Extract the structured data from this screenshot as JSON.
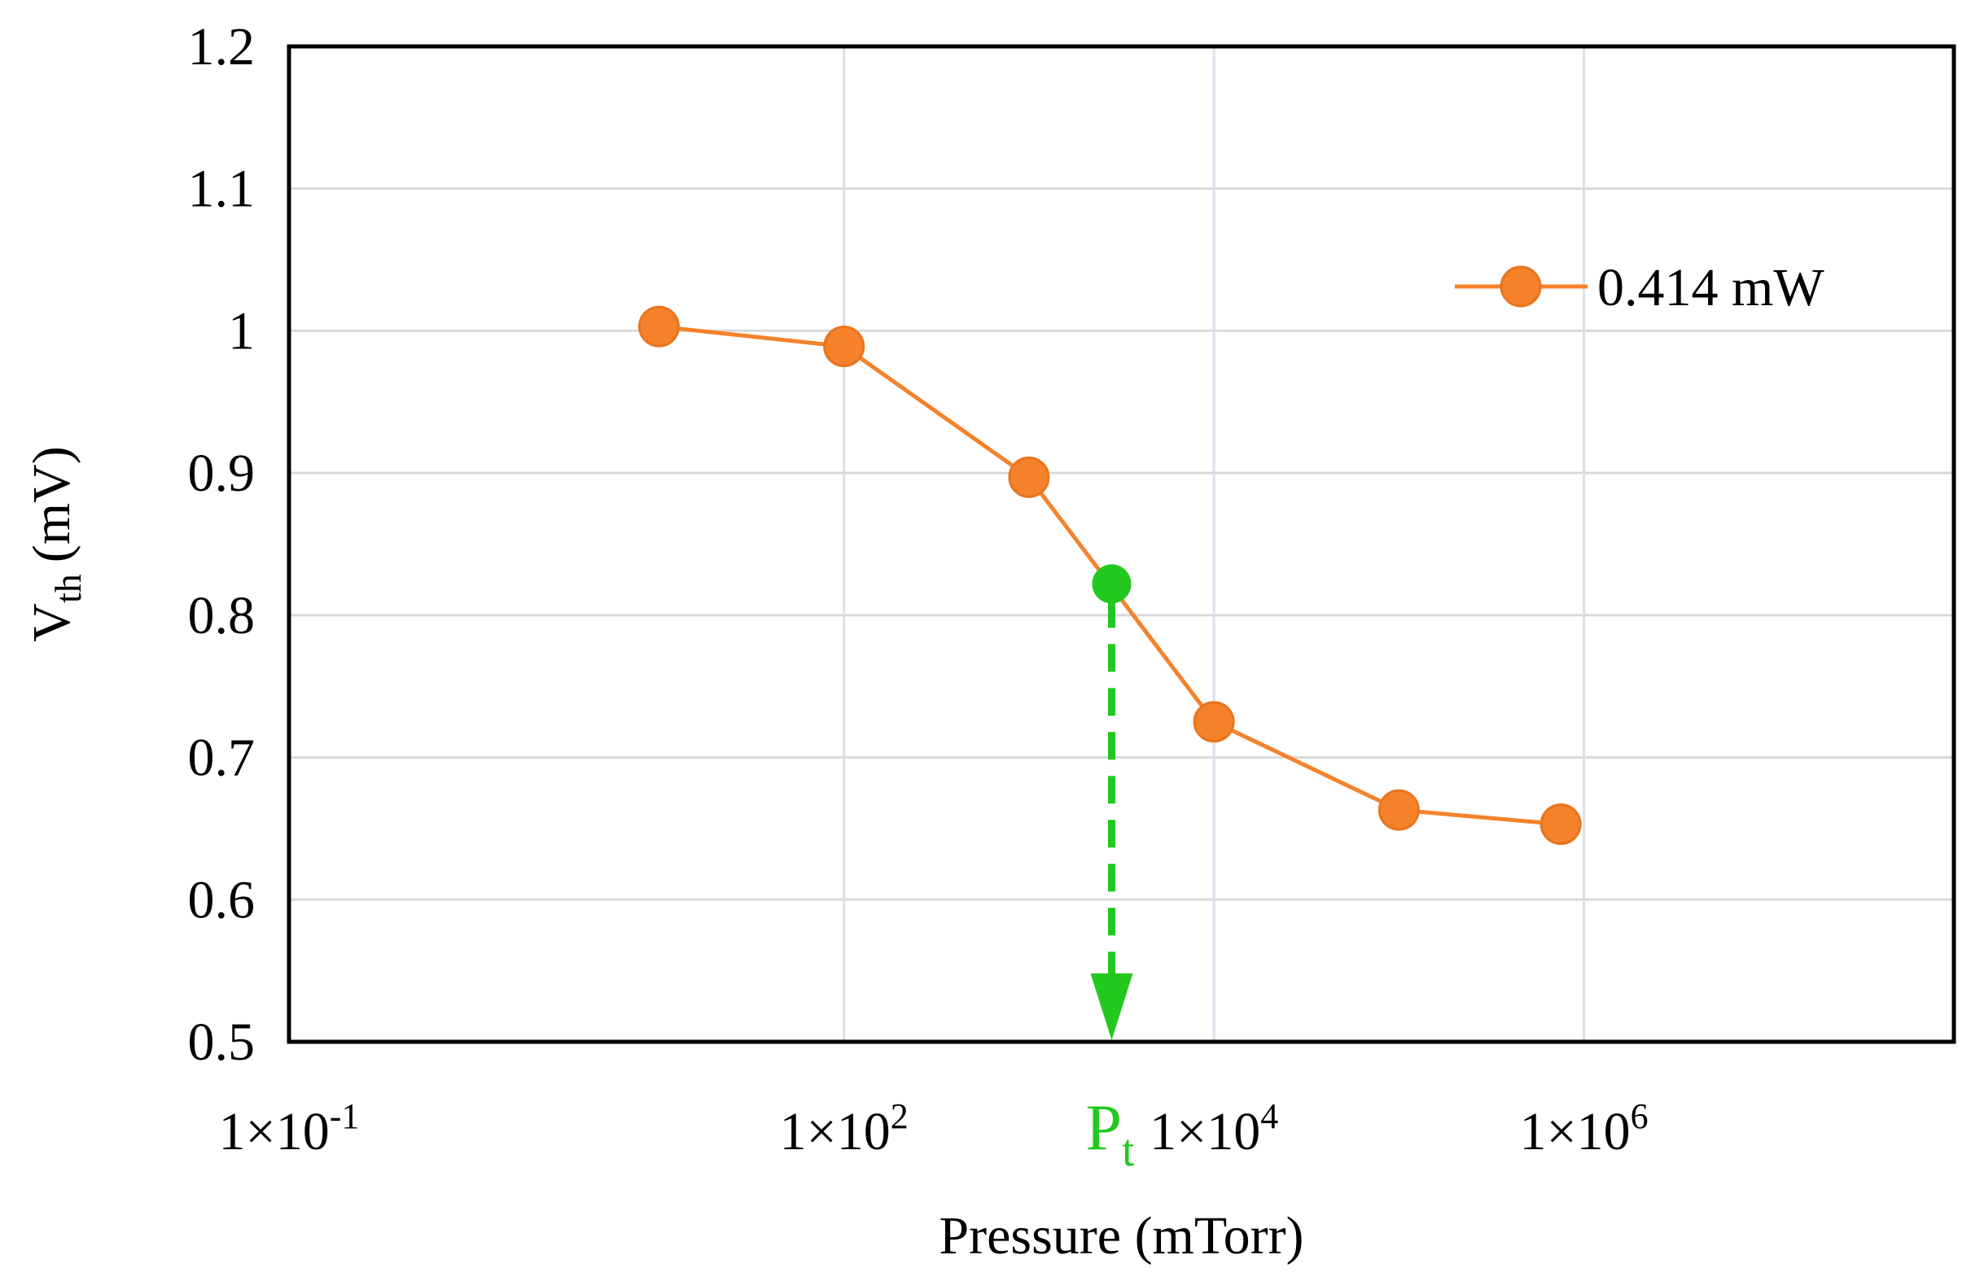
{
  "chart_data": {
    "type": "line",
    "xscale": "log",
    "xlabel": "Pressure (mTorr)",
    "ylabel": "V",
    "ylabel_sub": "th",
    "ylabel_unit": "(mV)",
    "xlim": [
      0.1,
      100000000
    ],
    "ylim": [
      0.5,
      1.2
    ],
    "x_ticks": [
      {
        "value": 0.1,
        "mantissa": "1×10",
        "exp": "-1"
      },
      {
        "value": 100,
        "mantissa": "1×10",
        "exp": "2"
      },
      {
        "value": 10000,
        "mantissa": "1×10",
        "exp": "4"
      },
      {
        "value": 1000000,
        "mantissa": "1×10",
        "exp": "6"
      }
    ],
    "y_ticks": [
      "0.5",
      "0.6",
      "0.7",
      "0.8",
      "0.9",
      "1",
      "1.1",
      "1.2"
    ],
    "x_gridlines": [
      100,
      10000,
      1000000
    ],
    "grid": true,
    "legend_position": "top-right",
    "series": [
      {
        "name": "0.414 mW",
        "color": "#F5822A",
        "x": [
          10,
          100,
          1000,
          10000,
          100000,
          750000
        ],
        "y": [
          1.003,
          0.989,
          0.897,
          0.725,
          0.663,
          0.653
        ]
      }
    ],
    "annotation": {
      "label": "P",
      "label_sub": "t",
      "color": "#22C81E",
      "x": 2800,
      "y": 0.822
    }
  }
}
